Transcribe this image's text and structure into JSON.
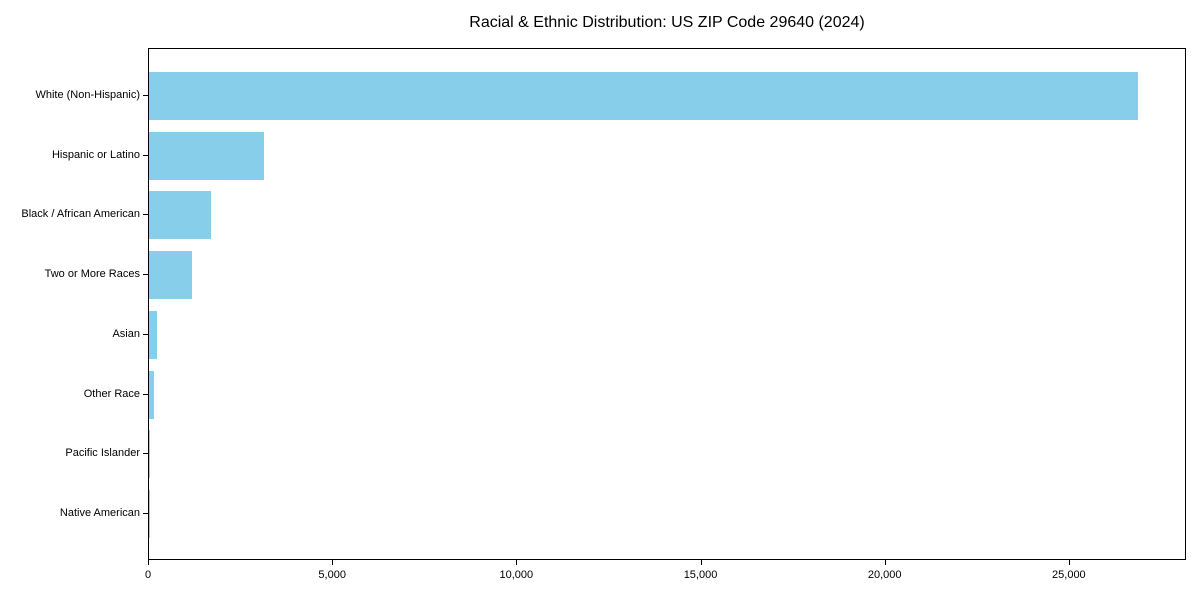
{
  "chart_data": {
    "type": "bar",
    "orientation": "horizontal",
    "title": "Racial & Ethnic Distribution: US ZIP Code 29640 (2024)",
    "xlabel": "",
    "ylabel": "",
    "categories": [
      "White (Non-Hispanic)",
      "Hispanic or Latino",
      "Black / African American",
      "Two or More Races",
      "Asian",
      "Other Race",
      "Pacific Islander",
      "Native American"
    ],
    "values": [
      26840,
      3115,
      1690,
      1155,
      215,
      135,
      28,
      12
    ],
    "bar_color": "#87CEEB",
    "xlim": [
      0,
      28180
    ],
    "x_tick_values": [
      0,
      5000,
      10000,
      15000,
      20000,
      25000
    ],
    "x_tick_labels": [
      "0",
      "5,000",
      "10,000",
      "15,000",
      "20,000",
      "25,000"
    ],
    "grid": false,
    "legend": false
  }
}
